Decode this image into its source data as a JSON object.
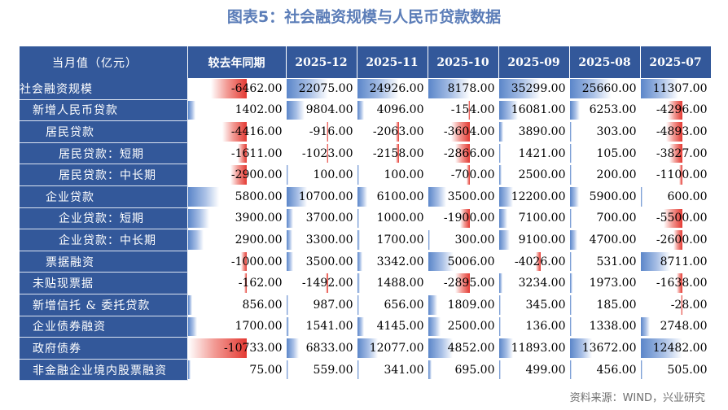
{
  "title": "图表5：社会融资规模与人民币贷款数据",
  "source": "资料来源：WIND，兴业研究",
  "colors": {
    "header_bg": "#33589a",
    "positive_bar": "#5b86c9",
    "negative_bar": "#e43a33",
    "title": "#5b7db8"
  },
  "chart_data": {
    "type": "table",
    "row_header": "当月值（亿元）",
    "columns": [
      "较去年同期",
      "2025-12",
      "2025-11",
      "2025-10",
      "2025-09",
      "2025-08",
      "2025-07"
    ],
    "rows": [
      {
        "label": "社会融资规模",
        "indent": 0,
        "values": [
          "-6462.00",
          "22075.00",
          "24926.00",
          "8178.00",
          "35299.00",
          "25660.00",
          "11307.00"
        ]
      },
      {
        "label": "新增人民币贷款",
        "indent": 1,
        "values": [
          "1402.00",
          "9804.00",
          "4096.00",
          "-154.00",
          "16081.00",
          "6253.00",
          "-4296.00"
        ]
      },
      {
        "label": "居民贷款",
        "indent": 2,
        "values": [
          "-4416.00",
          "-916.00",
          "-2063.00",
          "-3604.00",
          "3890.00",
          "303.00",
          "-4893.00"
        ]
      },
      {
        "label": "居民贷款：短期",
        "indent": 3,
        "values": [
          "-1611.00",
          "-1023.00",
          "-2158.00",
          "-2866.00",
          "1421.00",
          "105.00",
          "-3827.00"
        ]
      },
      {
        "label": "居民贷款：中长期",
        "indent": 3,
        "values": [
          "-2900.00",
          "100.00",
          "100.00",
          "-700.00",
          "2500.00",
          "200.00",
          "-1100.00"
        ]
      },
      {
        "label": "企业贷款",
        "indent": 2,
        "values": [
          "5800.00",
          "10700.00",
          "6100.00",
          "3500.00",
          "12200.00",
          "5900.00",
          "600.00"
        ]
      },
      {
        "label": "企业贷款：短期",
        "indent": 3,
        "values": [
          "3900.00",
          "3700.00",
          "1000.00",
          "-1900.00",
          "7100.00",
          "700.00",
          "-5500.00"
        ]
      },
      {
        "label": "企业贷款：中长期",
        "indent": 3,
        "values": [
          "2900.00",
          "3300.00",
          "1700.00",
          "300.00",
          "9100.00",
          "4700.00",
          "-2600.00"
        ]
      },
      {
        "label": "票据融资",
        "indent": 2,
        "values": [
          "-1000.00",
          "3500.00",
          "3342.00",
          "5006.00",
          "-4026.00",
          "531.00",
          "8711.00"
        ]
      },
      {
        "label": "未贴现票据",
        "indent": 1,
        "values": [
          "-162.00",
          "-1492.00",
          "1488.00",
          "-2895.00",
          "3234.00",
          "1973.00",
          "-1638.00"
        ]
      },
      {
        "label": "新增信托 & 委托贷款",
        "indent": 1,
        "values": [
          "856.00",
          "987.00",
          "656.00",
          "1809.00",
          "345.00",
          "185.00",
          "-28.00"
        ]
      },
      {
        "label": "企业债券融资",
        "indent": 1,
        "values": [
          "1700.00",
          "1541.00",
          "4145.00",
          "2500.00",
          "136.00",
          "1338.00",
          "2748.00"
        ]
      },
      {
        "label": "政府债券",
        "indent": 1,
        "values": [
          "-10733.00",
          "6833.00",
          "12077.00",
          "4852.00",
          "11893.00",
          "13672.00",
          "12482.00"
        ]
      },
      {
        "label": "非金融企业境内股票融资",
        "indent": 1,
        "values": [
          "75.00",
          "559.00",
          "341.00",
          "695.00",
          "499.00",
          "456.00",
          "505.00"
        ]
      }
    ]
  }
}
